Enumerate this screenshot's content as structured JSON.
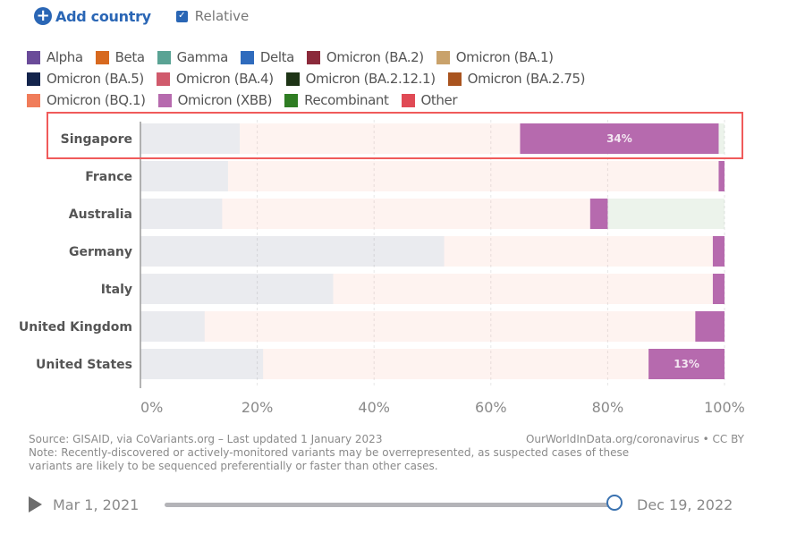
{
  "controls": {
    "add_country_label": "Add country",
    "relative_label": "Relative",
    "relative_checked": true
  },
  "legend": [
    {
      "label": "Alpha",
      "color": "#6a4b99"
    },
    {
      "label": "Beta",
      "color": "#d7691f"
    },
    {
      "label": "Gamma",
      "color": "#5aa394"
    },
    {
      "label": "Delta",
      "color": "#2f6bbd"
    },
    {
      "label": "Omicron (BA.2)",
      "color": "#8b2a3b"
    },
    {
      "label": "Omicron (BA.1)",
      "color": "#c9a26b"
    },
    {
      "label": "Omicron (BA.5)",
      "color": "#13244c"
    },
    {
      "label": "Omicron (BA.4)",
      "color": "#d05a6c"
    },
    {
      "label": "Omicron (BA.2.12.1)",
      "color": "#1e3416"
    },
    {
      "label": "Omicron (BA.2.75)",
      "color": "#a9541f"
    },
    {
      "label": "Omicron (BQ.1)",
      "color": "#f07c5a"
    },
    {
      "label": "Omicron (XBB)",
      "color": "#b66aae"
    },
    {
      "label": "Recombinant",
      "color": "#2f7d23"
    },
    {
      "label": "Other",
      "color": "#e04a55"
    }
  ],
  "chart_data": {
    "type": "bar",
    "orientation": "horizontal",
    "stacked": true,
    "highlighted_series": "Omicron (XBB)",
    "highlighted_category": "Singapore",
    "categories": [
      "Singapore",
      "France",
      "Australia",
      "Germany",
      "Italy",
      "United Kingdom",
      "United States"
    ],
    "series": [
      {
        "name": "Omicron (BA.5)",
        "color": "#13244c",
        "faded": true,
        "values": [
          17,
          15,
          14,
          52,
          33,
          11,
          21
        ]
      },
      {
        "name": "Omicron (BQ.1)",
        "color": "#f07c5a",
        "faded": true,
        "values": [
          48,
          84,
          63,
          46,
          65,
          84,
          66
        ]
      },
      {
        "name": "Omicron (XBB)",
        "color": "#b66aae",
        "faded": false,
        "values": [
          34,
          1,
          3,
          2,
          2,
          5,
          13
        ]
      },
      {
        "name": "Recombinant",
        "color": "#2f7d23",
        "faded": true,
        "values": [
          1,
          0,
          20,
          0,
          0,
          0,
          0
        ]
      }
    ],
    "data_labels": [
      {
        "category": "Singapore",
        "series": "Omicron (XBB)",
        "text": "34%"
      },
      {
        "category": "United States",
        "series": "Omicron (XBB)",
        "text": "13%"
      }
    ],
    "xticks": [
      "0%",
      "20%",
      "40%",
      "60%",
      "80%",
      "100%"
    ],
    "xlim": [
      0,
      100
    ],
    "grid": true,
    "legend_position": "top"
  },
  "footer": {
    "source": "Source: GISAID, via CoVariants.org – Last updated 1 January 2023",
    "attribution": "OurWorldInData.org/coronavirus • CC BY",
    "note_line1": "Note: Recently-discovered or actively-monitored variants may be overrepresented, as suspected cases of these",
    "note_line2": "variants are likely to be sequenced preferentially or faster than other cases."
  },
  "timeline": {
    "start_date": "Mar 1, 2021",
    "end_date": "Dec 19, 2022"
  }
}
